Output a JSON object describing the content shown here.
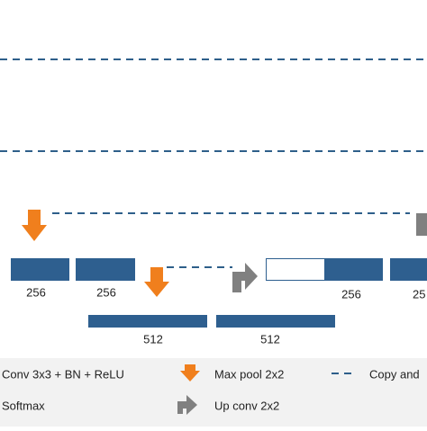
{
  "blocks": {
    "level3_labels": [
      "256",
      "256",
      "256",
      "25"
    ],
    "level4_labels": [
      "512",
      "512"
    ]
  },
  "legend": {
    "conv": "Conv 3x3 + BN + ReLU",
    "maxpool": "Max pool 2x2",
    "copy": "Copy and",
    "softmax": "Softmax",
    "upconv": "Up conv 2x2"
  }
}
